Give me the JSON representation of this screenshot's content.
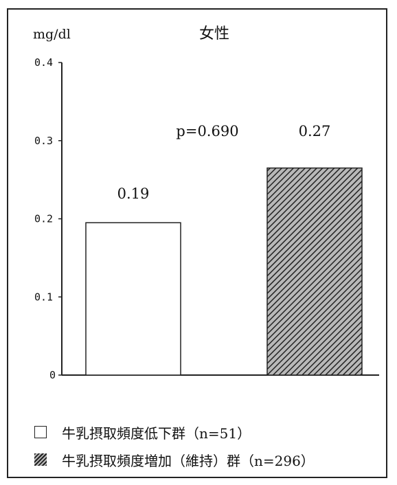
{
  "chart_data": {
    "type": "bar",
    "title": "女性",
    "ylabel": "mg/dl",
    "xlabel": "",
    "ylim": [
      0,
      0.4
    ],
    "yticks": [
      {
        "value": 0,
        "label": "0"
      },
      {
        "value": 0.1,
        "label": "0.1"
      },
      {
        "value": 0.2,
        "label": "0.2"
      },
      {
        "value": 0.3,
        "label": "0.3"
      },
      {
        "value": 0.4,
        "label": "0.4"
      }
    ],
    "categories": [
      "牛乳摂取頻度低下群（n=51）",
      "牛乳摂取頻度増加（維持）群（n=296）"
    ],
    "values": [
      0.195,
      0.265
    ],
    "data_labels": [
      "0.19",
      "0.27"
    ],
    "annotation": "p=0.690",
    "grid": false,
    "legend_placement": "bottom"
  },
  "colors": {
    "bar1_fill": "#ffffff",
    "bar2_fill": "hatched-dark",
    "axis": "#222222"
  }
}
